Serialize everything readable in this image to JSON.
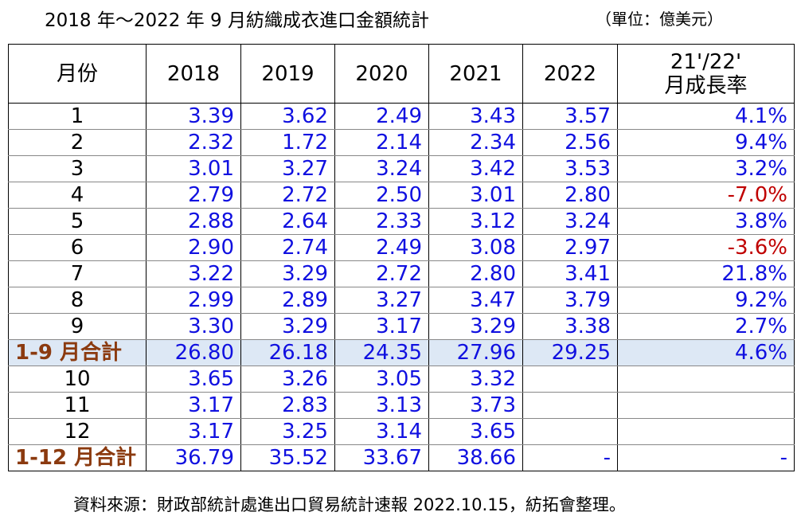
{
  "header": {
    "title": "2018 年～2022 年 9 月紡織成衣進口金額統計",
    "unit": "（單位：億美元）"
  },
  "table": {
    "columns": [
      "月份",
      "2018",
      "2019",
      "2020",
      "2021",
      "2022",
      [
        "21'/22'",
        "月成長率"
      ]
    ],
    "rows": [
      [
        "1",
        "3.39",
        "3.62",
        "2.49",
        "3.43",
        "3.57",
        "4.1%"
      ],
      [
        "2",
        "2.32",
        "1.72",
        "2.14",
        "2.34",
        "2.56",
        "9.4%"
      ],
      [
        "3",
        "3.01",
        "3.27",
        "3.24",
        "3.42",
        "3.53",
        "3.2%"
      ],
      [
        "4",
        "2.79",
        "2.72",
        "2.50",
        "3.01",
        "2.80",
        "-7.0%"
      ],
      [
        "5",
        "2.88",
        "2.64",
        "2.33",
        "3.12",
        "3.24",
        "3.8%"
      ],
      [
        "6",
        "2.90",
        "2.74",
        "2.49",
        "3.08",
        "2.97",
        "-3.6%"
      ],
      [
        "7",
        "3.22",
        "3.29",
        "2.72",
        "2.80",
        "3.41",
        "21.8%"
      ],
      [
        "8",
        "2.99",
        "2.89",
        "3.27",
        "3.47",
        "3.79",
        "9.2%"
      ],
      [
        "9",
        "3.30",
        "3.29",
        "3.17",
        "3.29",
        "3.38",
        "2.7%"
      ],
      [
        "1-9 月合計",
        "26.80",
        "26.18",
        "24.35",
        "27.96",
        "29.25",
        "4.6%"
      ],
      [
        "10",
        "3.65",
        "3.26",
        "3.05",
        "3.32"
      ],
      [
        "11",
        "3.17",
        "2.83",
        "3.13",
        "3.73"
      ],
      [
        "12",
        "3.17",
        "3.25",
        "3.14",
        "3.65"
      ],
      [
        "1-12 月合計",
        "36.79",
        "35.52",
        "33.67",
        "38.66",
        "-",
        "-"
      ]
    ]
  },
  "footer": {
    "note": "資料來源：財政部統計處進出口貿易統計速報 2022.10.15，紡拓會整理。"
  }
}
